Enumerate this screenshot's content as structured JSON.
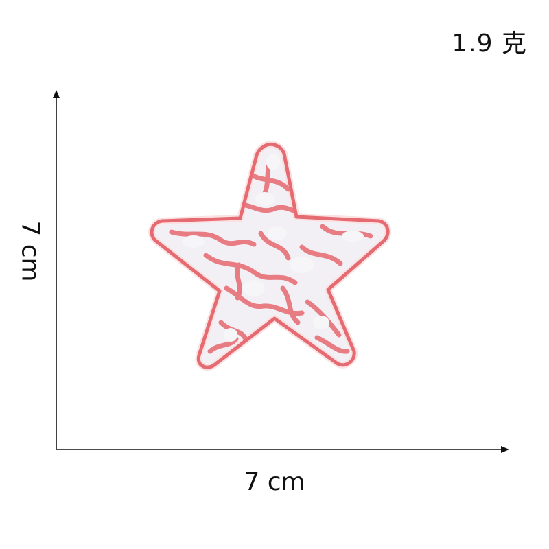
{
  "weight": "1.9 克",
  "dimensions": {
    "width": "7 cm",
    "height": "7 cm"
  },
  "product": {
    "name": "star-embroidered-patch",
    "outline_color": "#e56a72",
    "fill_color": "#f2f0f5"
  }
}
